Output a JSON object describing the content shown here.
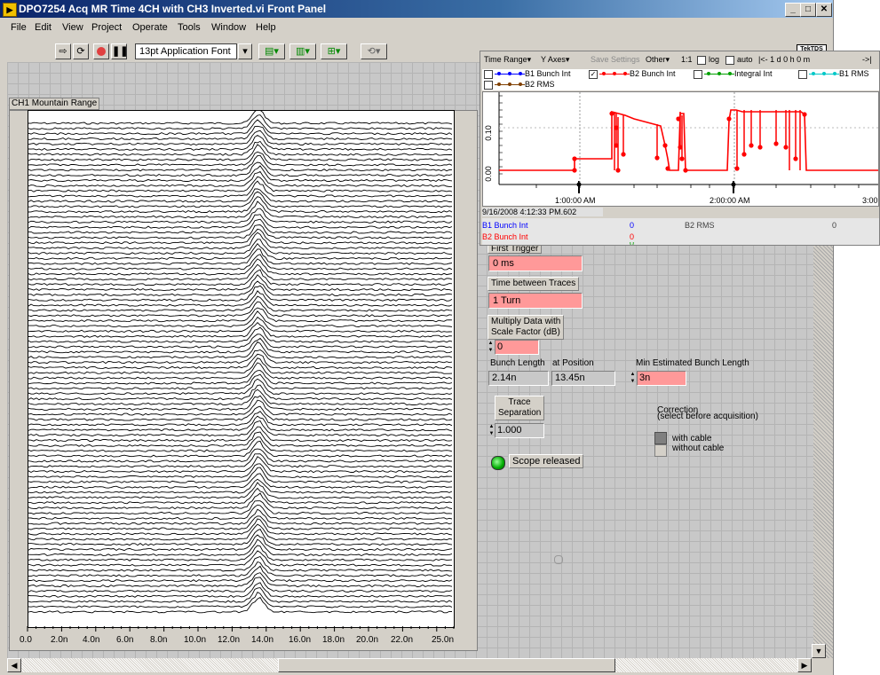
{
  "window": {
    "title": "DPO7254 Acq MR Time 4CH with CH3 Inverted.vi Front Panel",
    "app_icon": "labview-icon"
  },
  "menu": [
    "File",
    "Edit",
    "View",
    "Project",
    "Operate",
    "Tools",
    "Window",
    "Help"
  ],
  "toolbar": {
    "font": "13pt Application Font"
  },
  "brand": "TekTDS",
  "graph": {
    "label": "CH1 Mountain Range",
    "x_ticks": [
      "0.0",
      "2.0n",
      "4.0n",
      "6.0n",
      "8.0n",
      "10.0n",
      "12.0n",
      "14.0n",
      "16.0n",
      "18.0n",
      "20.0n",
      "22.0n",
      "25.0n"
    ]
  },
  "trend": {
    "toolbar": [
      "Time Range▾",
      "Y Axes▾",
      "Save Settings",
      "Other▾",
      "1:1",
      "log",
      "auto",
      "|<-  1 d 0 h 0 m",
      "->|"
    ],
    "legend": [
      {
        "label": "B1 Bunch Int",
        "color": "#0000ff",
        "checked": false
      },
      {
        "label": "B2 Bunch Int",
        "color": "#ff0000",
        "checked": true
      },
      {
        "label": "Integral Int",
        "color": "#00a000",
        "checked": false
      },
      {
        "label": "B1 RMS",
        "color": "#00c8c8",
        "checked": false
      },
      {
        "label": "B2 RMS",
        "color": "#804000",
        "checked": false
      }
    ],
    "y_ticks": [
      "0.10",
      "0.00"
    ],
    "time_ticks": [
      "1:00:00 AM",
      "2:00:00 AM",
      "3:00"
    ],
    "timestamp": "9/16/2008 4:12:33 PM.602",
    "stats": [
      {
        "label": "B1 Bunch Int",
        "value": "0",
        "color": "#0000ff"
      },
      {
        "label": "B2 Bunch Int",
        "value": "0",
        "color": "#ff0000"
      },
      {
        "label": "B2 RMS",
        "value": "0",
        "color": "#404040"
      }
    ],
    "hidden_value": "0"
  },
  "controls": {
    "first_trigger": {
      "label": "First Trigger",
      "value": "0 ms"
    },
    "time_between": {
      "label": "Time between Traces",
      "value": "1 Turn"
    },
    "multiply": {
      "label1": "Multiply Data with",
      "label2": "Scale Factor (dB)",
      "value": "0"
    },
    "bunch_length": {
      "label": "Bunch Length",
      "value": "2.14n"
    },
    "at_position": {
      "label": "at Position",
      "value": "13.45n"
    },
    "min_est": {
      "label": "Min Estimated Bunch Length",
      "value": "3n"
    },
    "trace_sep": {
      "label1": "Trace",
      "label2": "Separation",
      "value": "1.000"
    },
    "correction": {
      "title1": "Correction",
      "title2": "(select before acquisition)",
      "opt1": "with cable",
      "opt2": "without cable"
    },
    "scope": {
      "label": "Scope released"
    }
  }
}
